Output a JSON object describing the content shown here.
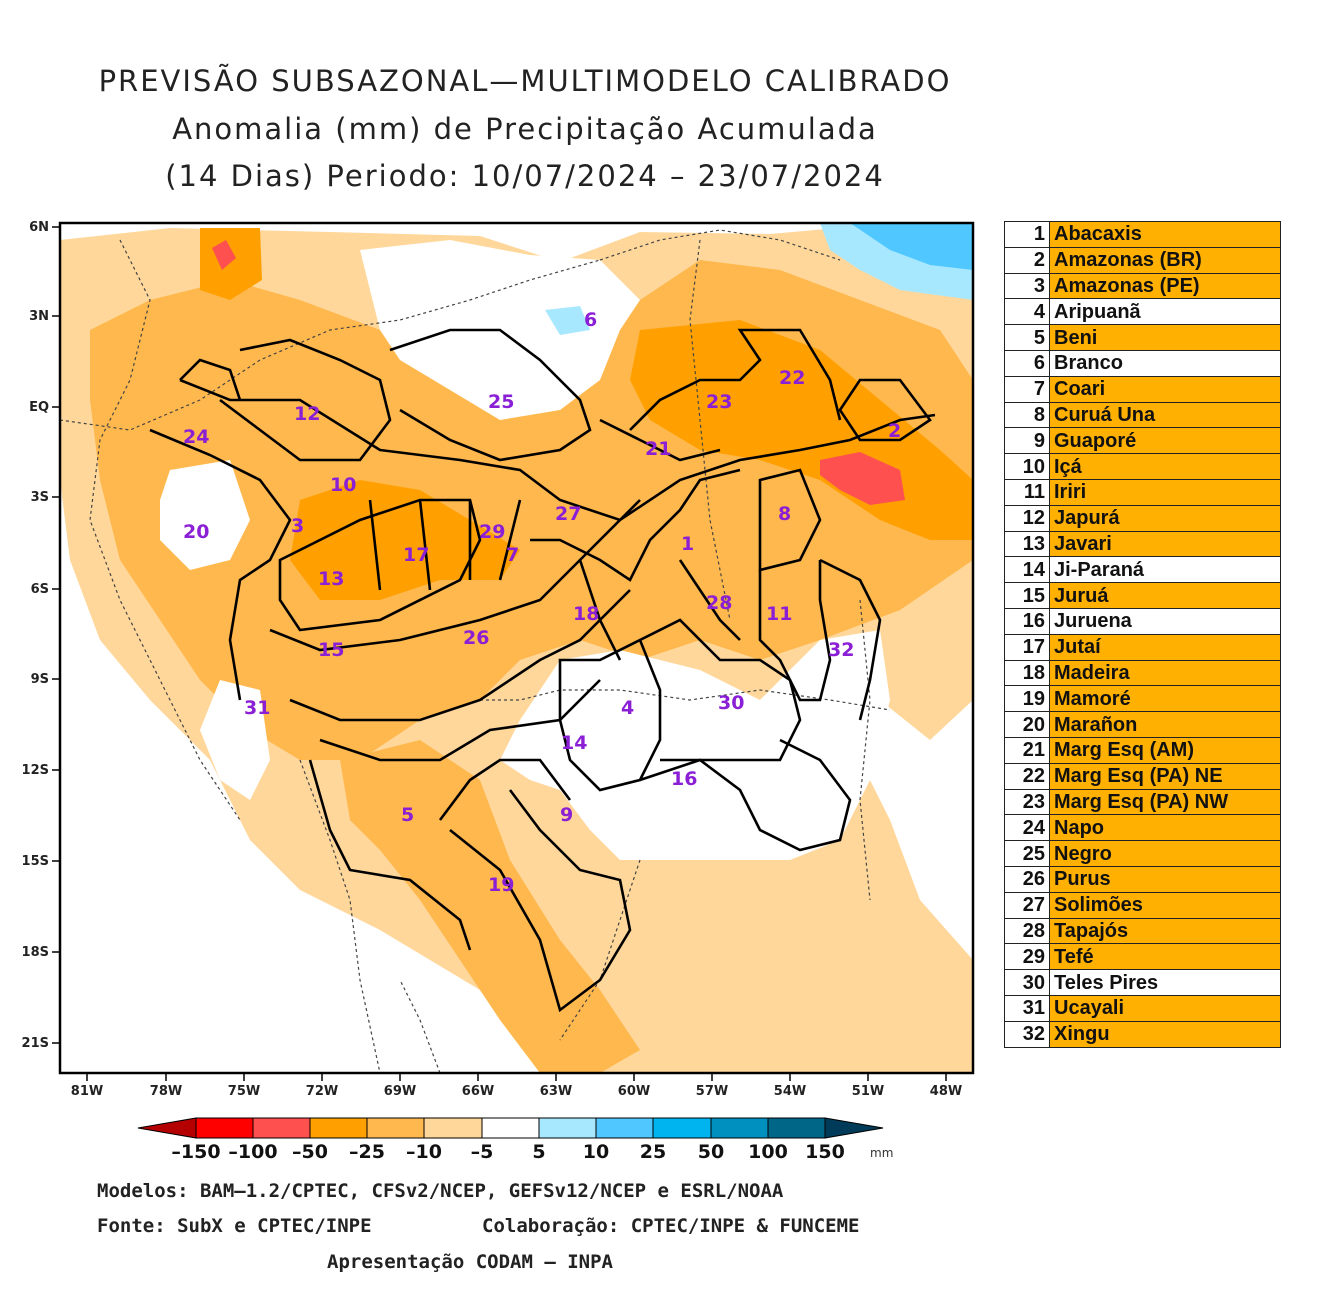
{
  "header": {
    "line1": "PREVISÃO SUBSAZONAL—MULTIMODELO CALIBRADO",
    "line2": "Anomalia (mm) de Precipitação Acumulada",
    "line3": "(14 Dias) Periodo: 10/07/2024 – 23/07/2024"
  },
  "map": {
    "y_ticks": [
      "6N",
      "3N",
      "EQ",
      "3S",
      "6S",
      "9S",
      "12S",
      "15S",
      "18S",
      "21S"
    ],
    "x_ticks": [
      "81W",
      "78W",
      "75W",
      "72W",
      "69W",
      "66W",
      "63W",
      "60W",
      "57W",
      "54W",
      "51W",
      "48W"
    ],
    "basin_numbers": [
      "1",
      "2",
      "3",
      "4",
      "5",
      "6",
      "7",
      "8",
      "9",
      "10",
      "11",
      "12",
      "13",
      "14",
      "15",
      "16",
      "17",
      "18",
      "19",
      "20",
      "21",
      "22",
      "23",
      "24",
      "25",
      "26",
      "27",
      "28",
      "29",
      "30",
      "31",
      "32"
    ]
  },
  "colorbar": {
    "labels": [
      "–150",
      "–100",
      "–50",
      "–25",
      "–10",
      "–5",
      "5",
      "10",
      "25",
      "50",
      "100",
      "150"
    ],
    "unit": "mm",
    "colors": [
      "#b40000",
      "#ff0000",
      "#ff5050",
      "#ffa000",
      "#ffb84d",
      "#ffd79a",
      "#ffffff",
      "#a8e8ff",
      "#50c8ff",
      "#00b4f0",
      "#0090c0",
      "#006688",
      "#003c5a"
    ]
  },
  "footer": {
    "line1": "Modelos: BAM–1.2/CPTEC, CFSv2/NCEP, GEFSv12/NCEP e ESRL/NOAA",
    "line2a": "Fonte: SubX e CPTEC/INPE",
    "line2b": "Colaboração: CPTEC/INPE & FUNCEME",
    "line3": "Apresentação CODAM – INPA"
  },
  "legend": [
    {
      "num": "1",
      "name": "Abacaxis",
      "highlight": true
    },
    {
      "num": "2",
      "name": "Amazonas (BR)",
      "highlight": true
    },
    {
      "num": "3",
      "name": "Amazonas (PE)",
      "highlight": true
    },
    {
      "num": "4",
      "name": "Aripuanã",
      "highlight": false
    },
    {
      "num": "5",
      "name": "Beni",
      "highlight": true
    },
    {
      "num": "6",
      "name": "Branco",
      "highlight": false
    },
    {
      "num": "7",
      "name": "Coari",
      "highlight": true
    },
    {
      "num": "8",
      "name": "Curuá Una",
      "highlight": true
    },
    {
      "num": "9",
      "name": "Guaporé",
      "highlight": true
    },
    {
      "num": "10",
      "name": "Içá",
      "highlight": true
    },
    {
      "num": "11",
      "name": "Iriri",
      "highlight": true
    },
    {
      "num": "12",
      "name": "Japurá",
      "highlight": true
    },
    {
      "num": "13",
      "name": "Javari",
      "highlight": true
    },
    {
      "num": "14",
      "name": "Ji-Paraná",
      "highlight": false
    },
    {
      "num": "15",
      "name": "Juruá",
      "highlight": true
    },
    {
      "num": "16",
      "name": "Juruena",
      "highlight": false
    },
    {
      "num": "17",
      "name": "Jutaí",
      "highlight": true
    },
    {
      "num": "18",
      "name": "Madeira",
      "highlight": true
    },
    {
      "num": "19",
      "name": "Mamoré",
      "highlight": true
    },
    {
      "num": "20",
      "name": "Marañon",
      "highlight": true
    },
    {
      "num": "21",
      "name": "Marg Esq (AM)",
      "highlight": true
    },
    {
      "num": "22",
      "name": "Marg Esq (PA) NE",
      "highlight": true
    },
    {
      "num": "23",
      "name": "Marg Esq (PA) NW",
      "highlight": true
    },
    {
      "num": "24",
      "name": "Napo",
      "highlight": true
    },
    {
      "num": "25",
      "name": "Negro",
      "highlight": true
    },
    {
      "num": "26",
      "name": "Purus",
      "highlight": true
    },
    {
      "num": "27",
      "name": "Solimões",
      "highlight": true
    },
    {
      "num": "28",
      "name": "Tapajós",
      "highlight": true
    },
    {
      "num": "29",
      "name": "Tefé",
      "highlight": true
    },
    {
      "num": "30",
      "name": "Teles Pires",
      "highlight": false
    },
    {
      "num": "31",
      "name": "Ucayali",
      "highlight": true
    },
    {
      "num": "32",
      "name": "Xingu",
      "highlight": true
    }
  ]
}
